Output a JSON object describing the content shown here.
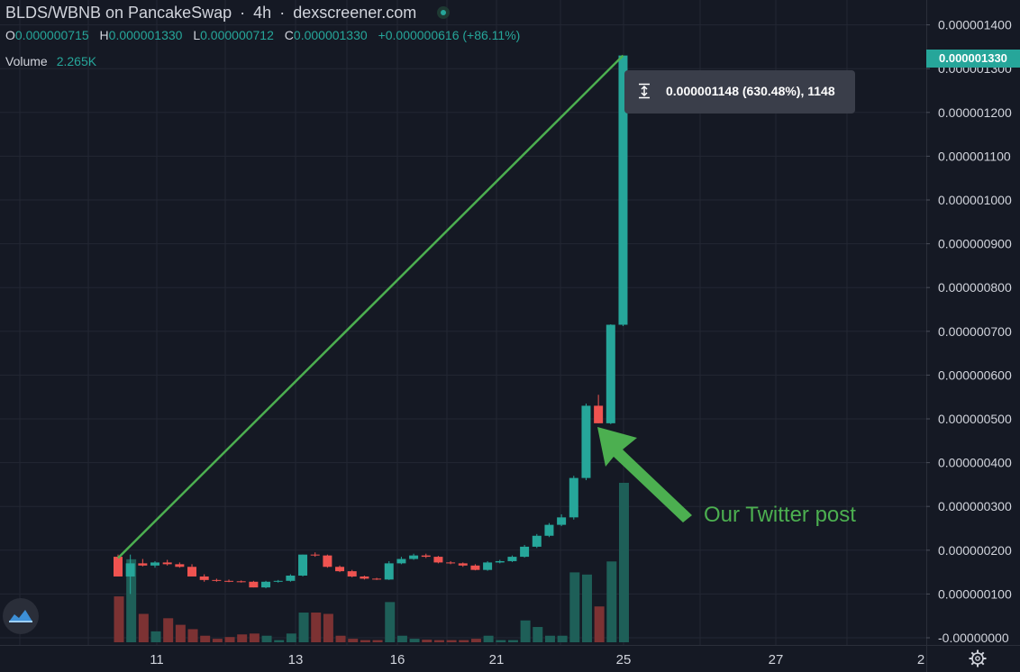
{
  "header": {
    "pair": "BLDS/WBNB on PancakeSwap",
    "interval": "4h",
    "source": "dexscreener.com",
    "ohlc": {
      "o_label": "O",
      "o_value": "0.000000715",
      "h_label": "H",
      "h_value": "0.000001330",
      "l_label": "L",
      "l_value": "0.000000712",
      "c_label": "C",
      "c_value": "0.000001330",
      "change": "+0.000000616 (+86.11%)"
    },
    "volume_label": "Volume",
    "volume_value": "2.265K"
  },
  "measure_tooltip": "0.000001148 (630.48%), 1148",
  "annotation": "Our Twitter post",
  "last_price_badge": "0.000001330",
  "colors": {
    "background": "#151924",
    "up": "#26a69a",
    "down": "#ef5350",
    "up_volume": "#1e5f58",
    "down_volume": "#7c3233",
    "annotation": "#4caf50",
    "grid": "#232733",
    "axis_text": "#d1d4dc"
  },
  "icons": {
    "logo": "dexscreener-logo-icon",
    "settings": "gear-icon",
    "measure": "measure-icon",
    "status": "status-dot-icon"
  },
  "chart_data": {
    "type": "candlestick",
    "y_axis_ticks": [
      "0.000001400",
      "0.000001300",
      "0.000001200",
      "0.000001100",
      "0.000001000",
      "0.000000900",
      "0.000000800",
      "0.000000700",
      "0.000000600",
      "0.000000500",
      "0.000000400",
      "0.000000300",
      "0.000000200",
      "0.000000100",
      "-0.00000000"
    ],
    "ylim": [
      0,
      1.4e-06
    ],
    "x_axis_ticks": [
      "11",
      "13",
      "16",
      "21",
      "25",
      "27",
      "2"
    ],
    "candles": [
      {
        "o": 1.85e-07,
        "h": 1.9e-07,
        "l": 1.4e-07,
        "c": 1.4e-07,
        "v": 105
      },
      {
        "o": 1.4e-07,
        "h": 1.9e-07,
        "l": 1e-07,
        "c": 1.7e-07,
        "v": 190
      },
      {
        "o": 1.7e-07,
        "h": 1.8e-07,
        "l": 1.63e-07,
        "c": 1.65e-07,
        "v": 65
      },
      {
        "o": 1.65e-07,
        "h": 1.75e-07,
        "l": 1.6e-07,
        "c": 1.72e-07,
        "v": 25
      },
      {
        "o": 1.72e-07,
        "h": 1.78e-07,
        "l": 1.65e-07,
        "c": 1.68e-07,
        "v": 55
      },
      {
        "o": 1.68e-07,
        "h": 1.72e-07,
        "l": 1.6e-07,
        "c": 1.62e-07,
        "v": 40
      },
      {
        "o": 1.62e-07,
        "h": 1.68e-07,
        "l": 1.4e-07,
        "c": 1.4e-07,
        "v": 30
      },
      {
        "o": 1.4e-07,
        "h": 1.45e-07,
        "l": 1.28e-07,
        "c": 1.32e-07,
        "v": 15
      },
      {
        "o": 1.32e-07,
        "h": 1.35e-07,
        "l": 1.28e-07,
        "c": 1.3e-07,
        "v": 8
      },
      {
        "o": 1.3e-07,
        "h": 1.33e-07,
        "l": 1.27e-07,
        "c": 1.29e-07,
        "v": 12
      },
      {
        "o": 1.29e-07,
        "h": 1.31e-07,
        "l": 1.26e-07,
        "c": 1.28e-07,
        "v": 18
      },
      {
        "o": 1.28e-07,
        "h": 1.3e-07,
        "l": 1.15e-07,
        "c": 1.15e-07,
        "v": 20
      },
      {
        "o": 1.15e-07,
        "h": 1.3e-07,
        "l": 1.13e-07,
        "c": 1.28e-07,
        "v": 15
      },
      {
        "o": 1.28e-07,
        "h": 1.32e-07,
        "l": 1.26e-07,
        "c": 1.3e-07,
        "v": 5
      },
      {
        "o": 1.3e-07,
        "h": 1.45e-07,
        "l": 1.28e-07,
        "c": 1.42e-07,
        "v": 20
      },
      {
        "o": 1.42e-07,
        "h": 1.9e-07,
        "l": 1.4e-07,
        "c": 1.9e-07,
        "v": 68
      },
      {
        "o": 1.9e-07,
        "h": 1.95e-07,
        "l": 1.85e-07,
        "c": 1.88e-07,
        "v": 68
      },
      {
        "o": 1.88e-07,
        "h": 1.9e-07,
        "l": 1.6e-07,
        "c": 1.62e-07,
        "v": 65
      },
      {
        "o": 1.62e-07,
        "h": 1.65e-07,
        "l": 1.5e-07,
        "c": 1.52e-07,
        "v": 15
      },
      {
        "o": 1.52e-07,
        "h": 1.55e-07,
        "l": 1.38e-07,
        "c": 1.4e-07,
        "v": 8
      },
      {
        "o": 1.4e-07,
        "h": 1.42e-07,
        "l": 1.33e-07,
        "c": 1.35e-07,
        "v": 5
      },
      {
        "o": 1.35e-07,
        "h": 1.37e-07,
        "l": 1.32e-07,
        "c": 1.33e-07,
        "v": 5
      },
      {
        "o": 1.33e-07,
        "h": 1.75e-07,
        "l": 1.32e-07,
        "c": 1.7e-07,
        "v": 92
      },
      {
        "o": 1.7e-07,
        "h": 1.85e-07,
        "l": 1.68e-07,
        "c": 1.8e-07,
        "v": 15
      },
      {
        "o": 1.8e-07,
        "h": 1.92e-07,
        "l": 1.78e-07,
        "c": 1.88e-07,
        "v": 8
      },
      {
        "o": 1.88e-07,
        "h": 1.92e-07,
        "l": 1.82e-07,
        "c": 1.85e-07,
        "v": 6
      },
      {
        "o": 1.85e-07,
        "h": 1.87e-07,
        "l": 1.7e-07,
        "c": 1.72e-07,
        "v": 5
      },
      {
        "o": 1.72e-07,
        "h": 1.75e-07,
        "l": 1.68e-07,
        "c": 1.7e-07,
        "v": 5
      },
      {
        "o": 1.7e-07,
        "h": 1.72e-07,
        "l": 1.62e-07,
        "c": 1.65e-07,
        "v": 5
      },
      {
        "o": 1.65e-07,
        "h": 1.68e-07,
        "l": 1.54e-07,
        "c": 1.55e-07,
        "v": 8
      },
      {
        "o": 1.55e-07,
        "h": 1.75e-07,
        "l": 1.53e-07,
        "c": 1.72e-07,
        "v": 15
      },
      {
        "o": 1.72e-07,
        "h": 1.78e-07,
        "l": 1.7e-07,
        "c": 1.75e-07,
        "v": 5
      },
      {
        "o": 1.75e-07,
        "h": 1.88e-07,
        "l": 1.73e-07,
        "c": 1.85e-07,
        "v": 5
      },
      {
        "o": 1.85e-07,
        "h": 2.12e-07,
        "l": 1.83e-07,
        "c": 2.08e-07,
        "v": 50
      },
      {
        "o": 2.08e-07,
        "h": 2.37e-07,
        "l": 2.05e-07,
        "c": 2.33e-07,
        "v": 35
      },
      {
        "o": 2.33e-07,
        "h": 2.62e-07,
        "l": 2.3e-07,
        "c": 2.58e-07,
        "v": 15
      },
      {
        "o": 2.58e-07,
        "h": 2.82e-07,
        "l": 2.55e-07,
        "c": 2.75e-07,
        "v": 15
      },
      {
        "o": 2.75e-07,
        "h": 3.7e-07,
        "l": 2.7e-07,
        "c": 3.65e-07,
        "v": 160
      },
      {
        "o": 3.65e-07,
        "h": 5.35e-07,
        "l": 3.6e-07,
        "c": 5.3e-07,
        "v": 155
      },
      {
        "o": 5.3e-07,
        "h": 5.55e-07,
        "l": 4.9e-07,
        "c": 4.9e-07,
        "v": 82
      },
      {
        "o": 4.9e-07,
        "h": 7.16e-07,
        "l": 4.88e-07,
        "c": 7.15e-07,
        "v": 185
      },
      {
        "o": 7.15e-07,
        "h": 1.33e-06,
        "l": 7.12e-07,
        "c": 1.33e-06,
        "v": 365
      }
    ],
    "measure_line": {
      "from": 1.82e-07,
      "to": 1.33e-06
    }
  }
}
